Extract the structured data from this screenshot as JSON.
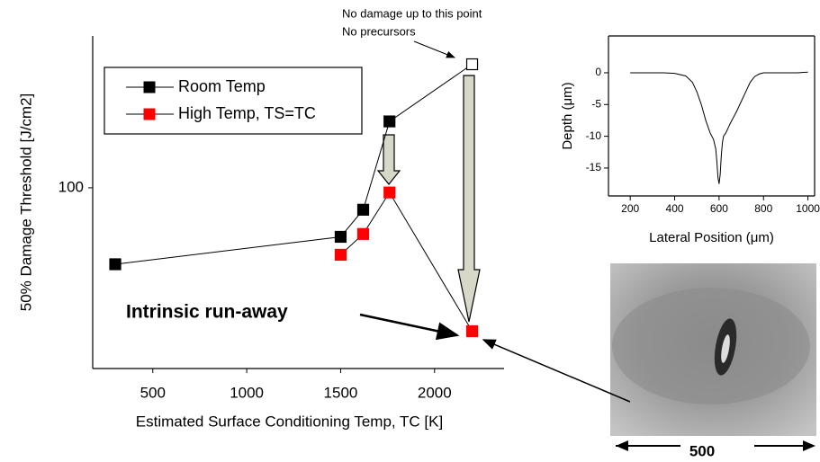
{
  "chart_data": [
    {
      "type": "line",
      "log_y": true,
      "x": [
        300,
        1500,
        1620,
        1760,
        2200
      ],
      "xlabel": "Estimated Surface Conditioning Temp, TC [K]",
      "ylabel": "50% Damage Threshold [J/cm2]",
      "xlim": [
        180,
        2370
      ],
      "xticks": [
        500,
        1000,
        1500,
        2000
      ],
      "ylim": [
        46,
        192
      ],
      "yticks": [
        100
      ],
      "legend": "upper left",
      "series": [
        {
          "name": "Room Temp",
          "color": "#000000",
          "values": [
            72,
            81,
            91,
            133,
            170
          ],
          "hollow_points": [
            4
          ]
        },
        {
          "name": "High Temp, TS=TC",
          "color": "#ff0000",
          "values": [
            null,
            75,
            82,
            98,
            54
          ]
        }
      ],
      "annotations": [
        "No damage up to this point",
        "No precursors",
        "Intrinsic run-away"
      ]
    },
    {
      "type": "line",
      "x": [
        200,
        250,
        300,
        350,
        400,
        450,
        480,
        500,
        520,
        540,
        560,
        575,
        585,
        590,
        595,
        600,
        605,
        610,
        615,
        620,
        630,
        650,
        680,
        700,
        720,
        740,
        760,
        780,
        800,
        850,
        900,
        950,
        1000
      ],
      "values": [
        0,
        0,
        0,
        0,
        -0.1,
        -0.5,
        -1.5,
        -3,
        -5,
        -7.5,
        -9.5,
        -10.5,
        -12,
        -14,
        -16.5,
        -17.5,
        -16,
        -13,
        -11,
        -10,
        -9.5,
        -8,
        -6,
        -4.5,
        -3,
        -1.5,
        -0.6,
        -0.2,
        0,
        0,
        0,
        0,
        0.1
      ],
      "color": "#000000",
      "xlabel": "Lateral Position (μm)",
      "ylabel": "Depth (μm)",
      "xlim": [
        102,
        1030
      ],
      "xticks": [
        200,
        400,
        600,
        800,
        1000
      ],
      "ylim": [
        -19.4,
        5.8
      ],
      "yticks": [
        0,
        -5,
        -10,
        -15
      ]
    }
  ],
  "image_scale_label": "500"
}
